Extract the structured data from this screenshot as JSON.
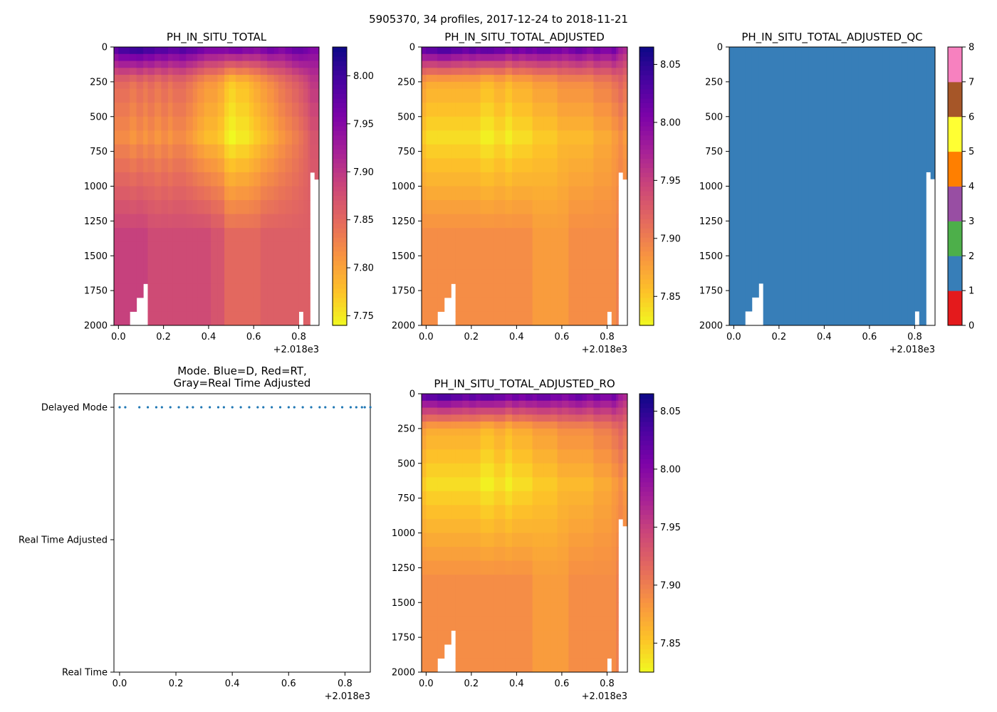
{
  "figure_title": "5905370, 34 profiles, 2017-12-24 to 2018-11-21",
  "colors": {
    "mode_dots": "#1f77b4",
    "qc_fill": "#377eb8",
    "no_data": "#ffffff"
  },
  "chart_data": [
    {
      "id": "ph_in_situ_total",
      "type": "heatmap",
      "title": "PH_IN_SITU_TOTAL",
      "xlabel": "",
      "ylabel": "",
      "x_offset_label": "+2.018e3",
      "xlim": [
        -0.02,
        0.89
      ],
      "ylim": [
        2000,
        0
      ],
      "x_ticks": [
        0.0,
        0.2,
        0.4,
        0.6,
        0.8
      ],
      "x_tick_labels": [
        "0.0",
        "0.2",
        "0.4",
        "0.6",
        "0.8"
      ],
      "y_ticks": [
        0,
        250,
        500,
        750,
        1000,
        1250,
        1500,
        1750,
        2000
      ],
      "y_tick_labels": [
        "0",
        "250",
        "500",
        "750",
        "1000",
        "1250",
        "1500",
        "1750",
        "2000"
      ],
      "colormap": "plasma_r",
      "colorbar_range": [
        7.74,
        8.03
      ],
      "colorbar_ticks": [
        7.75,
        7.8,
        7.85,
        7.9,
        7.95,
        8.0
      ],
      "colorbar_tick_labels": [
        "7.75",
        "7.80",
        "7.85",
        "7.90",
        "7.95",
        "8.00"
      ],
      "profile_starts": [
        -0.02,
        0.0,
        0.05,
        0.08,
        0.11,
        0.13,
        0.16,
        0.19,
        0.22,
        0.24,
        0.27,
        0.3,
        0.33,
        0.35,
        0.38,
        0.41,
        0.44,
        0.47,
        0.49,
        0.52,
        0.55,
        0.58,
        0.6,
        0.63,
        0.66,
        0.69,
        0.71,
        0.74,
        0.77,
        0.8,
        0.82,
        0.84,
        0.85,
        0.87
      ],
      "depth_levels": [
        0,
        50,
        100,
        150,
        200,
        250,
        300,
        400,
        500,
        600,
        700,
        800,
        900,
        1000,
        1100,
        1200,
        1300,
        1400,
        1500,
        1600,
        1700,
        1800,
        1900,
        2000
      ],
      "profile_bottom_depth": [
        2000,
        2000,
        1900,
        1800,
        1700,
        2000,
        2000,
        2000,
        2000,
        2000,
        2000,
        2000,
        2000,
        2000,
        2000,
        2000,
        2000,
        2000,
        2000,
        2000,
        2000,
        2000,
        2000,
        2000,
        2000,
        2000,
        2000,
        2000,
        2000,
        1900,
        2000,
        2000,
        900,
        950
      ],
      "surface_values": [
        8.0,
        8.02,
        8.03,
        8.03,
        8.02,
        8.02,
        8.01,
        8.01,
        8.0,
        8.0,
        8.01,
        8.0,
        8.0,
        7.99,
        7.98,
        7.98,
        7.98,
        7.98,
        7.99,
        7.99,
        7.98,
        7.98,
        7.97,
        7.98,
        7.99,
        7.98,
        7.97,
        7.98,
        7.99,
        7.99,
        7.98,
        7.97,
        7.96,
        7.96
      ],
      "midwater_min_values": [
        7.82,
        7.82,
        7.81,
        7.82,
        7.81,
        7.82,
        7.81,
        7.82,
        7.81,
        7.82,
        7.82,
        7.81,
        7.8,
        7.79,
        7.78,
        7.78,
        7.77,
        7.75,
        7.74,
        7.75,
        7.75,
        7.76,
        7.77,
        7.78,
        7.79,
        7.8,
        7.81,
        7.82,
        7.83,
        7.84,
        7.85,
        7.86,
        7.87,
        7.87
      ],
      "deep_values": [
        7.89,
        7.89,
        7.89,
        7.89,
        7.89,
        7.88,
        7.88,
        7.88,
        7.88,
        7.88,
        7.88,
        7.88,
        7.88,
        7.88,
        7.88,
        7.87,
        7.87,
        7.85,
        7.85,
        7.85,
        7.85,
        7.85,
        7.85,
        7.86,
        7.86,
        7.86,
        7.86,
        7.86,
        7.86,
        7.86,
        7.86,
        7.86,
        7.86,
        7.86
      ]
    },
    {
      "id": "ph_in_situ_total_adjusted",
      "type": "heatmap",
      "title": "PH_IN_SITU_TOTAL_ADJUSTED",
      "xlabel": "",
      "ylabel": "",
      "x_offset_label": "+2.018e3",
      "xlim": [
        -0.02,
        0.89
      ],
      "ylim": [
        2000,
        0
      ],
      "x_ticks": [
        0.0,
        0.2,
        0.4,
        0.6,
        0.8
      ],
      "x_tick_labels": [
        "0.0",
        "0.2",
        "0.4",
        "0.6",
        "0.8"
      ],
      "y_ticks": [
        0,
        250,
        500,
        750,
        1000,
        1250,
        1500,
        1750,
        2000
      ],
      "y_tick_labels": [
        "0",
        "250",
        "500",
        "750",
        "1000",
        "1250",
        "1500",
        "1750",
        "2000"
      ],
      "colormap": "plasma_r",
      "colorbar_range": [
        7.825,
        8.065
      ],
      "colorbar_ticks": [
        7.85,
        7.9,
        7.95,
        8.0,
        8.05
      ],
      "colorbar_tick_labels": [
        "7.85",
        "7.90",
        "7.95",
        "8.00",
        "8.05"
      ],
      "profile_starts": [
        -0.02,
        0.0,
        0.05,
        0.08,
        0.11,
        0.13,
        0.16,
        0.19,
        0.22,
        0.24,
        0.27,
        0.3,
        0.33,
        0.35,
        0.38,
        0.41,
        0.44,
        0.47,
        0.49,
        0.52,
        0.55,
        0.58,
        0.6,
        0.63,
        0.66,
        0.69,
        0.71,
        0.74,
        0.77,
        0.8,
        0.82,
        0.84,
        0.85,
        0.87
      ],
      "depth_levels": [
        0,
        50,
        100,
        150,
        200,
        250,
        300,
        400,
        500,
        600,
        700,
        800,
        900,
        1000,
        1100,
        1200,
        1300,
        1400,
        1500,
        1600,
        1700,
        1800,
        1900,
        2000
      ],
      "profile_bottom_depth": [
        2000,
        2000,
        1900,
        1800,
        1700,
        2000,
        2000,
        2000,
        2000,
        2000,
        2000,
        2000,
        2000,
        2000,
        2000,
        2000,
        2000,
        2000,
        2000,
        2000,
        2000,
        2000,
        2000,
        2000,
        2000,
        2000,
        2000,
        2000,
        2000,
        1900,
        2000,
        2000,
        900,
        950
      ],
      "surface_values": [
        8.04,
        8.05,
        8.06,
        8.06,
        8.05,
        8.05,
        8.04,
        8.05,
        8.04,
        8.05,
        8.05,
        8.04,
        8.04,
        8.03,
        8.04,
        8.03,
        8.04,
        8.03,
        8.04,
        8.04,
        8.03,
        8.03,
        8.02,
        8.03,
        8.04,
        8.03,
        8.02,
        8.03,
        8.02,
        8.02,
        8.03,
        8.01,
        7.99,
        7.98
      ],
      "midwater_min_values": [
        7.85,
        7.84,
        7.84,
        7.84,
        7.84,
        7.84,
        7.84,
        7.84,
        7.84,
        7.83,
        7.83,
        7.84,
        7.84,
        7.83,
        7.84,
        7.84,
        7.84,
        7.85,
        7.85,
        7.85,
        7.85,
        7.86,
        7.86,
        7.86,
        7.86,
        7.86,
        7.86,
        7.87,
        7.87,
        7.87,
        7.88,
        7.88,
        7.89,
        7.88
      ],
      "deep_values": [
        7.89,
        7.89,
        7.89,
        7.89,
        7.89,
        7.89,
        7.89,
        7.89,
        7.89,
        7.89,
        7.89,
        7.89,
        7.89,
        7.89,
        7.89,
        7.89,
        7.89,
        7.88,
        7.88,
        7.88,
        7.88,
        7.88,
        7.88,
        7.89,
        7.89,
        7.89,
        7.89,
        7.89,
        7.89,
        7.89,
        7.89,
        7.9,
        7.9,
        7.9
      ]
    },
    {
      "id": "ph_in_situ_total_adjusted_qc",
      "type": "heatmap",
      "title": "PH_IN_SITU_TOTAL_ADJUSTED_QC",
      "xlabel": "",
      "ylabel": "",
      "x_offset_label": "+2.018e3",
      "xlim": [
        -0.02,
        0.89
      ],
      "ylim": [
        2000,
        0
      ],
      "x_ticks": [
        0.0,
        0.2,
        0.4,
        0.6,
        0.8
      ],
      "x_tick_labels": [
        "0.0",
        "0.2",
        "0.4",
        "0.6",
        "0.8"
      ],
      "y_ticks": [
        0,
        250,
        500,
        750,
        1000,
        1250,
        1500,
        1750,
        2000
      ],
      "y_tick_labels": [
        "0",
        "250",
        "500",
        "750",
        "1000",
        "1250",
        "1500",
        "1750",
        "2000"
      ],
      "qc_value_all_cells": 1,
      "colorbar_range": [
        0,
        8
      ],
      "colorbar_ticks": [
        0,
        1,
        2,
        3,
        4,
        5,
        6,
        7,
        8
      ],
      "colorbar_tick_labels": [
        "0",
        "1",
        "2",
        "3",
        "4",
        "5",
        "6",
        "7",
        "8"
      ],
      "qc_class_colors": [
        "#e41a1c",
        "#377eb8",
        "#4daf4a",
        "#984ea3",
        "#ff7f00",
        "#ffff33",
        "#a65628",
        "#f781bf",
        "#999999"
      ],
      "profile_starts": [
        -0.02,
        0.0,
        0.05,
        0.08,
        0.11,
        0.13,
        0.16,
        0.19,
        0.22,
        0.24,
        0.27,
        0.3,
        0.33,
        0.35,
        0.38,
        0.41,
        0.44,
        0.47,
        0.49,
        0.52,
        0.55,
        0.58,
        0.6,
        0.63,
        0.66,
        0.69,
        0.71,
        0.74,
        0.77,
        0.8,
        0.82,
        0.84,
        0.85,
        0.87
      ],
      "profile_bottom_depth": [
        2000,
        2000,
        1900,
        1800,
        1700,
        2000,
        2000,
        2000,
        2000,
        2000,
        2000,
        2000,
        2000,
        2000,
        2000,
        2000,
        2000,
        2000,
        2000,
        2000,
        2000,
        2000,
        2000,
        2000,
        2000,
        2000,
        2000,
        2000,
        2000,
        1900,
        2000,
        2000,
        900,
        950
      ]
    },
    {
      "id": "mode",
      "type": "scatter",
      "title_lines": [
        "Mode. Blue=D, Red=RT,",
        "Gray=Real Time Adjusted"
      ],
      "xlabel": "",
      "ylabel": "",
      "x_offset_label": "+2.018e3",
      "xlim": [
        -0.02,
        0.89
      ],
      "x_ticks": [
        0.0,
        0.2,
        0.4,
        0.6,
        0.8
      ],
      "x_tick_labels": [
        "0.0",
        "0.2",
        "0.4",
        "0.6",
        "0.8"
      ],
      "y_categories": [
        "Real Time",
        "Real Time Adjusted",
        "Delayed Mode"
      ],
      "series": [
        {
          "name": "Delayed Mode",
          "y": "Delayed Mode",
          "x": [
            -0.02,
            0.0,
            0.05,
            0.08,
            0.11,
            0.13,
            0.16,
            0.19,
            0.22,
            0.24,
            0.27,
            0.3,
            0.33,
            0.35,
            0.38,
            0.41,
            0.44,
            0.47,
            0.49,
            0.52,
            0.55,
            0.58,
            0.6,
            0.63,
            0.66,
            0.69,
            0.71,
            0.74,
            0.77,
            0.8,
            0.82,
            0.84,
            0.85,
            0.87
          ]
        }
      ]
    },
    {
      "id": "ph_in_situ_total_adjusted_ro",
      "type": "heatmap",
      "title": "PH_IN_SITU_TOTAL_ADJUSTED_RO",
      "xlabel": "",
      "ylabel": "",
      "x_offset_label": "+2.018e3",
      "xlim": [
        -0.02,
        0.89
      ],
      "ylim": [
        2000,
        0
      ],
      "x_ticks": [
        0.0,
        0.2,
        0.4,
        0.6,
        0.8
      ],
      "x_tick_labels": [
        "0.0",
        "0.2",
        "0.4",
        "0.6",
        "0.8"
      ],
      "y_ticks": [
        0,
        250,
        500,
        750,
        1000,
        1250,
        1500,
        1750,
        2000
      ],
      "y_tick_labels": [
        "0",
        "250",
        "500",
        "750",
        "1000",
        "1250",
        "1500",
        "1750",
        "2000"
      ],
      "colormap": "plasma_r",
      "colorbar_range": [
        7.825,
        8.065
      ],
      "colorbar_ticks": [
        7.85,
        7.9,
        7.95,
        8.0,
        8.05
      ],
      "colorbar_tick_labels": [
        "7.85",
        "7.90",
        "7.95",
        "8.00",
        "8.05"
      ],
      "profile_starts": [
        -0.02,
        0.0,
        0.05,
        0.08,
        0.11,
        0.13,
        0.16,
        0.19,
        0.22,
        0.24,
        0.27,
        0.3,
        0.33,
        0.35,
        0.38,
        0.41,
        0.44,
        0.47,
        0.49,
        0.52,
        0.55,
        0.58,
        0.6,
        0.63,
        0.66,
        0.69,
        0.71,
        0.74,
        0.77,
        0.8,
        0.82,
        0.84,
        0.85,
        0.87
      ],
      "depth_levels": [
        0,
        50,
        100,
        150,
        200,
        250,
        300,
        400,
        500,
        600,
        700,
        800,
        900,
        1000,
        1100,
        1200,
        1300,
        1400,
        1500,
        1600,
        1700,
        1800,
        1900,
        2000
      ],
      "profile_bottom_depth": [
        2000,
        2000,
        1900,
        1800,
        1700,
        2000,
        2000,
        2000,
        2000,
        2000,
        2000,
        2000,
        2000,
        2000,
        2000,
        2000,
        2000,
        2000,
        2000,
        2000,
        2000,
        2000,
        2000,
        2000,
        2000,
        2000,
        2000,
        2000,
        2000,
        1900,
        2000,
        2000,
        900,
        950
      ],
      "surface_values": [
        8.04,
        8.05,
        8.06,
        8.06,
        8.05,
        8.05,
        8.04,
        8.05,
        8.04,
        8.05,
        8.05,
        8.04,
        8.04,
        8.03,
        8.04,
        8.03,
        8.04,
        8.03,
        8.04,
        8.04,
        8.03,
        8.03,
        8.02,
        8.03,
        8.04,
        8.03,
        8.02,
        8.03,
        8.02,
        8.02,
        8.03,
        8.01,
        7.99,
        7.98
      ],
      "midwater_min_values": [
        7.85,
        7.84,
        7.84,
        7.84,
        7.84,
        7.84,
        7.84,
        7.84,
        7.84,
        7.83,
        7.83,
        7.84,
        7.84,
        7.83,
        7.84,
        7.84,
        7.84,
        7.85,
        7.85,
        7.85,
        7.85,
        7.86,
        7.86,
        7.86,
        7.86,
        7.86,
        7.86,
        7.87,
        7.87,
        7.87,
        7.88,
        7.88,
        7.89,
        7.88
      ],
      "deep_values": [
        7.89,
        7.89,
        7.89,
        7.89,
        7.89,
        7.89,
        7.89,
        7.89,
        7.89,
        7.89,
        7.89,
        7.89,
        7.89,
        7.89,
        7.89,
        7.89,
        7.89,
        7.88,
        7.88,
        7.88,
        7.88,
        7.88,
        7.88,
        7.89,
        7.89,
        7.89,
        7.89,
        7.89,
        7.89,
        7.89,
        7.89,
        7.9,
        7.9,
        7.9
      ]
    }
  ]
}
